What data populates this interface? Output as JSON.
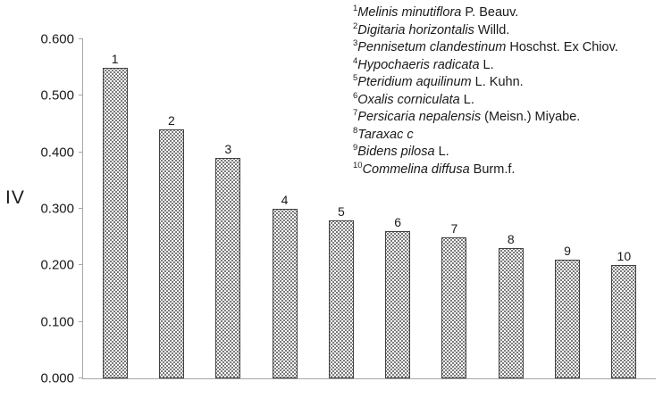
{
  "chart_data": {
    "type": "bar",
    "title": "",
    "xlabel": "",
    "ylabel": "IV",
    "ylim": [
      0,
      0.6
    ],
    "grid": false,
    "legend_position": "top-right",
    "bar_fill": "stipple-dot-pattern",
    "axis_color": "#a6a6a6",
    "yticks": [
      "0.000",
      "0.100",
      "0.200",
      "0.300",
      "0.400",
      "0.500",
      "0.600"
    ],
    "categories": [
      "1",
      "2",
      "3",
      "4",
      "5",
      "6",
      "7",
      "8",
      "9",
      "10"
    ],
    "values": [
      0.55,
      0.44,
      0.39,
      0.3,
      0.28,
      0.26,
      0.25,
      0.23,
      0.21,
      0.2
    ],
    "legend": [
      {
        "sup": "1",
        "italic": "Melinis minutiflora",
        "rest": " P. Beauv."
      },
      {
        "sup": "2",
        "italic": "Digitaria horizontalis",
        "rest": " Willd."
      },
      {
        "sup": "3",
        "italic": "Pennisetum clandestinum",
        "rest": " Hoschst. Ex Chiov."
      },
      {
        "sup": "4",
        "italic": "Hypochaeris radicata",
        "rest": " L."
      },
      {
        "sup": "5",
        "italic": "Pteridium aquilinum",
        "rest": " L. Kuhn."
      },
      {
        "sup": "6",
        "italic": "Oxalis corniculata",
        "rest": " L."
      },
      {
        "sup": "7",
        "italic": "Persicaria nepalensis",
        "rest": " (Meisn.) Miyabe."
      },
      {
        "sup": "8",
        "italic": "Taraxac c",
        "rest": ""
      },
      {
        "sup": "9",
        "italic": "Bidens pilosa",
        "rest": " L."
      },
      {
        "sup": "10",
        "italic": "Commelina diffusa",
        "rest": " Burm.f."
      }
    ]
  }
}
